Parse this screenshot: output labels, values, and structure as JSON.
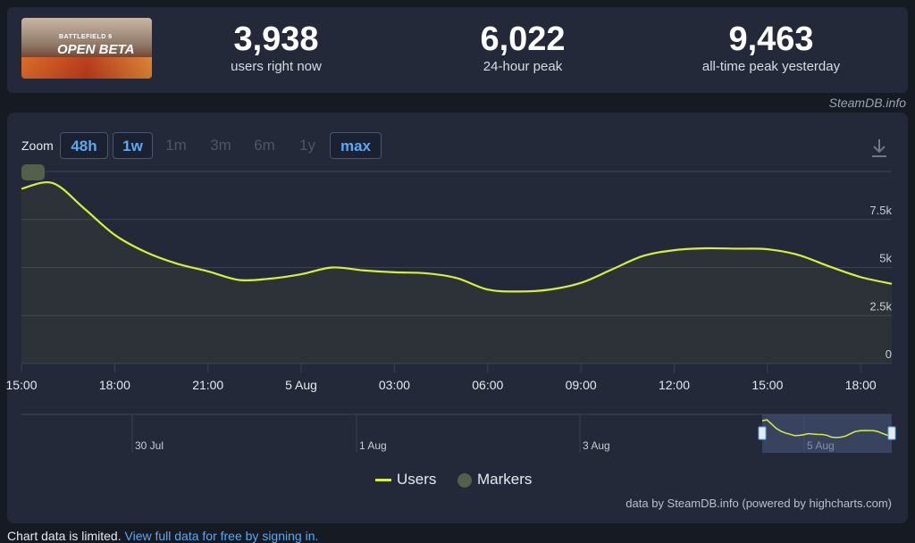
{
  "header": {
    "thumbnail": {
      "line1": "BATTLEFIELD 6",
      "line2": "OPEN BETA"
    },
    "stats": [
      {
        "value": "3,938",
        "label": "users right now"
      },
      {
        "value": "6,022",
        "label": "24-hour peak"
      },
      {
        "value": "9,463",
        "label": "all-time peak yesterday"
      }
    ],
    "credit": "SteamDB.info"
  },
  "zoom": {
    "label": "Zoom",
    "buttons": [
      {
        "label": "48h",
        "state": "active"
      },
      {
        "label": "1w",
        "state": "active"
      },
      {
        "label": "1m",
        "state": "disabled"
      },
      {
        "label": "3m",
        "state": "disabled"
      },
      {
        "label": "6m",
        "state": "disabled"
      },
      {
        "label": "1y",
        "state": "disabled"
      },
      {
        "label": "max",
        "state": "active"
      }
    ],
    "download_icon": "download-icon"
  },
  "chart_data": {
    "type": "line",
    "xlabel": "",
    "ylabel": "",
    "x_ticks": [
      "15:00",
      "18:00",
      "21:00",
      "5 Aug",
      "03:00",
      "06:00",
      "09:00",
      "12:00",
      "15:00",
      "18:00"
    ],
    "y_ticks": [
      "0",
      "2.5k",
      "5k",
      "7.5k"
    ],
    "ylim": [
      0,
      10000
    ],
    "grid": true,
    "legend_position": "bottom-center",
    "series": [
      {
        "name": "Users",
        "color": "#d4f03a",
        "x": [
          "15:00",
          "16:00",
          "17:00",
          "18:00",
          "19:00",
          "20:00",
          "21:00",
          "22:00",
          "23:00",
          "5 Aug",
          "01:00",
          "02:00",
          "03:00",
          "04:00",
          "05:00",
          "06:00",
          "07:00",
          "08:00",
          "09:00",
          "10:00",
          "11:00",
          "12:00",
          "13:00",
          "14:00",
          "15:00",
          "16:00",
          "17:00",
          "18:00",
          "19:00"
        ],
        "values": [
          9100,
          9400,
          8100,
          6700,
          5800,
          5200,
          4800,
          4350,
          4420,
          4650,
          5000,
          4850,
          4750,
          4700,
          4450,
          3850,
          3750,
          3850,
          4200,
          4900,
          5600,
          5900,
          6000,
          5980,
          5950,
          5650,
          5050,
          4500,
          4150
        ]
      }
    ],
    "marker_label": "Markers",
    "navigator": {
      "labels": [
        "30 Jul",
        "1 Aug",
        "3 Aug",
        "5 Aug"
      ]
    }
  },
  "legend": {
    "users": "Users",
    "markers": "Markers"
  },
  "footnote": "data by SteamDB.info (powered by highcharts.com)",
  "bottom": {
    "text": "Chart data is limited.",
    "link": "View full data for free by signing in."
  }
}
